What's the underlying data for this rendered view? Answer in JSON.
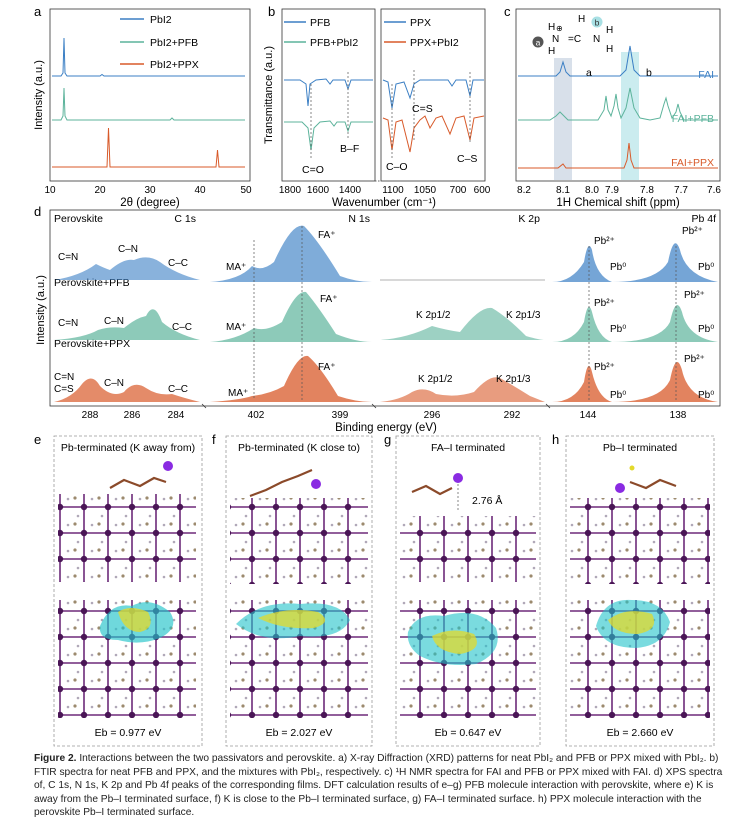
{
  "panels": {
    "a": "a",
    "b": "b",
    "c": "c",
    "d": "d",
    "e": "e",
    "f": "f",
    "g": "g",
    "h": "h"
  },
  "colors": {
    "blue": "#3b7fc4",
    "teal": "#5cb39b",
    "orange": "#d85a2a",
    "gray": "#555555"
  },
  "xrd": {
    "legend": [
      "PbI2",
      "PbI2+PFB",
      "PbI2+PPX"
    ],
    "xlabel": "2θ (degree)",
    "ylabel": "Intensity (a.u.)",
    "ticks": [
      "10",
      "20",
      "30",
      "40",
      "50"
    ]
  },
  "ftir": {
    "legend_left": [
      "PFB",
      "PFB+PbI2"
    ],
    "legend_right": [
      "PPX",
      "PPX+PbI2"
    ],
    "ylabel": "Transmittance (a.u.)",
    "xlabel": "Wavenumber (cm⁻¹)",
    "ticks_left": [
      "1800",
      "1600",
      "1400"
    ],
    "ticks_right": [
      "1100",
      "1050",
      "700",
      "600"
    ],
    "ann": {
      "co": "C=O",
      "bf": "B–F",
      "cs": "C=S",
      "c_o": "C–O",
      "c_s": "C–S"
    }
  },
  "nmr": {
    "xlabel": "1H Chemical shift (ppm)",
    "ticks": [
      "8.2",
      "8.1",
      "8.0",
      "7.9",
      "7.8",
      "7.7",
      "7.6"
    ],
    "traces": [
      "FAI",
      "FAI+PFB",
      "FAI+PPX"
    ],
    "peaks": {
      "a": "a",
      "b": "b"
    }
  },
  "xps": {
    "sections": [
      "C 1s",
      "N 1s",
      "K 2p",
      "Pb 4f"
    ],
    "rows": [
      "Perovskite",
      "Perovskite+PFB",
      "Perovskite+PPX"
    ],
    "xlabel": "Binding energy (eV)",
    "ylabel": "Intensity (a.u.)",
    "ticks_c": [
      "288",
      "286",
      "284"
    ],
    "ticks_n": [
      "402",
      "399"
    ],
    "ticks_k": [
      "296",
      "292"
    ],
    "ticks_pb": [
      "144",
      "138"
    ],
    "labels": {
      "cn2": "C=N",
      "cn": "C–N",
      "cc": "C–C",
      "cs": "C=S",
      "fa": "FA⁺",
      "ma": "MA⁺",
      "k12": "K 2p1/2",
      "k13": "K 2p1/3",
      "pb2": "Pb²⁺",
      "pb0": "Pb⁰"
    }
  },
  "dft": [
    {
      "title": "Pb-terminated (K away from)",
      "energy": "Eb = 0.977 eV"
    },
    {
      "title": "Pb-terminated (K close to)",
      "energy": "Eb = 2.027 eV"
    },
    {
      "title": "FA–I terminated",
      "energy": "Eb = 0.647 eV",
      "distance": "2.76 Å"
    },
    {
      "title": "Pb–I terminated",
      "energy": "Eb = 2.660 eV"
    }
  ],
  "caption": {
    "label": "Figure 2.",
    "text": "Interactions between the two passivators and perovskite. a) X-ray Diffraction (XRD) patterns for neat PbI₂ and PFB or PPX mixed with PbI₂. b) FTIR spectra for neat PFB and PPX, and the mixtures with PbI₂, respectively. c) ¹H NMR spectra for FAI and PFB or PPX mixed with FAI. d) XPS spectra of, C 1s, N 1s, K 2p and Pb 4f peaks of the corresponding films. DFT calculation results of e–g) PFB molecule interaction with perovskite, where e) K is away from the Pb–I terminated surface, f) K is close to the Pb–I terminated surface, g) FA–I terminated surface. h) PPX molecule interaction with the perovskite Pb–I terminated surface."
  }
}
